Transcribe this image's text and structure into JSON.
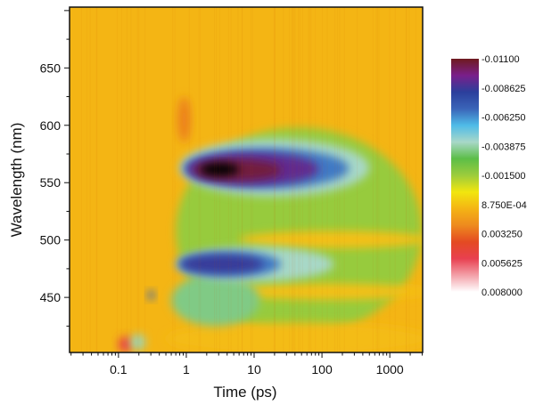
{
  "chart_data": {
    "type": "heatmap",
    "title": "",
    "xlabel": "Time (ps)",
    "ylabel": "Wavelength (nm)",
    "xscale": "log",
    "xlim": [
      0.019,
      3050
    ],
    "ylim": [
      402,
      703
    ],
    "xticks": [
      0.1,
      1,
      10,
      100,
      1000
    ],
    "xtick_labels": [
      "0.1",
      "1",
      "10",
      "100",
      "1000"
    ],
    "yticks": [
      450,
      500,
      550,
      600,
      650
    ],
    "ytick_labels": [
      "450",
      "500",
      "550",
      "600",
      "650"
    ],
    "background_value": 0.0012,
    "colorbar": {
      "ticks": [
        -0.011,
        -0.008625,
        -0.00625,
        -0.003875,
        -0.0015,
        0.000875,
        0.00325,
        0.005625,
        0.008
      ],
      "tick_labels": [
        "-0.01100",
        "-0.008625",
        "-0.006250",
        "-0.003875",
        "-0.001500",
        "8.750E-04",
        "0.003250",
        "0.005625",
        "0.008000"
      ],
      "colors": [
        "#6e1a1e",
        "#7a1f8a",
        "#2b3f9c",
        "#3a64b8",
        "#4fbbe8",
        "#a8d8c8",
        "#5cbe48",
        "#9ccc3c",
        "#f2e60e",
        "#f4b414",
        "#ee8a1e",
        "#e44a22",
        "#e84050",
        "#f3a0a8",
        "#ffffff"
      ],
      "range": [
        -0.011,
        0.008
      ]
    },
    "features": [
      {
        "name": "yellow-broad-region",
        "t": [
          0.7,
          3000
        ],
        "wl": [
          418,
          598
        ],
        "value": -0.0016
      },
      {
        "name": "orange-gap-500",
        "t": [
          6,
          4000
        ],
        "wl": [
          493,
          508
        ],
        "value": 0.0009
      },
      {
        "name": "orange-gap-455",
        "t": [
          4,
          4000
        ],
        "wl": [
          448,
          462
        ],
        "value": 0.0009
      },
      {
        "name": "orange-low-region",
        "t": [
          0.5,
          4000
        ],
        "wl": [
          400,
          428
        ],
        "value": 0.001
      },
      {
        "name": "green-lower-region",
        "t": [
          0.6,
          12
        ],
        "wl": [
          425,
          470
        ],
        "value": -0.0035
      },
      {
        "name": "green-band-560",
        "t": [
          0.8,
          500
        ],
        "wl": [
          538,
          588
        ],
        "value": -0.0042
      },
      {
        "name": "green-band-478",
        "t": [
          0.7,
          150
        ],
        "wl": [
          464,
          494
        ],
        "value": -0.0042
      },
      {
        "name": "lightblue-band-560",
        "t": [
          0.9,
          250
        ],
        "wl": [
          545,
          580
        ],
        "value": -0.0066
      },
      {
        "name": "blue-band-560",
        "t": [
          1.0,
          90
        ],
        "wl": [
          548,
          576
        ],
        "value": -0.0092
      },
      {
        "name": "purple-core-560",
        "t": [
          1.3,
          25
        ],
        "wl": [
          552,
          570
        ],
        "value": -0.0106
      },
      {
        "name": "saturated-core-560",
        "t": [
          1.6,
          6
        ],
        "wl": [
          556,
          567
        ],
        "value": -0.013
      },
      {
        "name": "lightblue-band-478",
        "t": [
          0.75,
          25
        ],
        "wl": [
          468,
          490
        ],
        "value": -0.0066
      },
      {
        "name": "blue-band-478",
        "t": [
          0.8,
          14
        ],
        "wl": [
          471,
          487
        ],
        "value": -0.0085
      },
      {
        "name": "red-streak-600",
        "t": [
          0.75,
          1.15
        ],
        "wl": [
          585,
          625
        ],
        "value": 0.0028
      },
      {
        "name": "artifact-red",
        "t": [
          0.1,
          0.16
        ],
        "wl": [
          402,
          416
        ],
        "value": 0.005
      },
      {
        "name": "artifact-blue-spot",
        "t": [
          0.27,
          0.34
        ],
        "wl": [
          448,
          456
        ],
        "value": -0.007
      },
      {
        "name": "artifact-green",
        "t": [
          0.15,
          0.25
        ],
        "wl": [
          404,
          418
        ],
        "value": -0.004
      }
    ]
  }
}
